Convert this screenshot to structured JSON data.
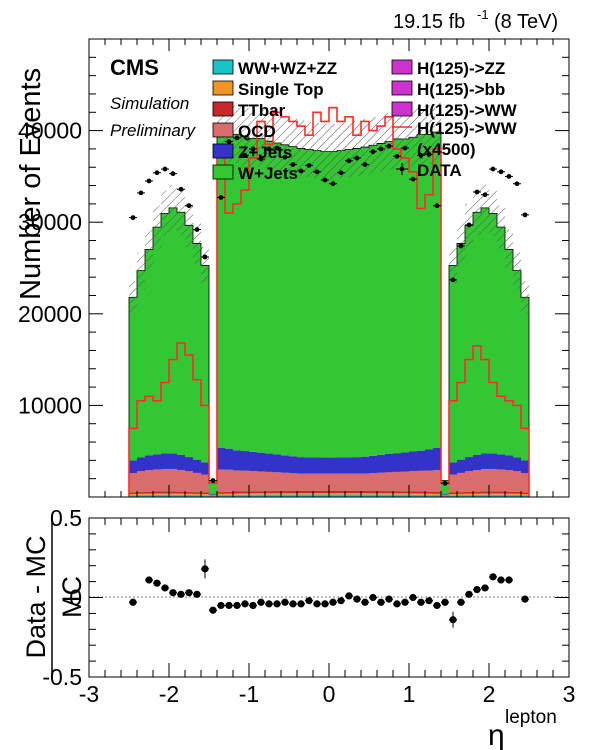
{
  "header": {
    "lumi_value": "19.15 fb",
    "lumi_exp": "-1",
    "energy": "(8 TeV)"
  },
  "labels": {
    "cms": "CMS",
    "simulation": "Simulation",
    "preliminary": "Preliminary"
  },
  "chart_data": [
    {
      "type": "bar",
      "subtype": "stacked-histogram",
      "ylabel": "Number of Events",
      "xlim": [
        -3,
        3
      ],
      "ylim": [
        0,
        50000
      ],
      "bin_edges": [
        -2.5,
        -2.4,
        -2.3,
        -2.2,
        -2.1,
        -2.0,
        -1.9,
        -1.8,
        -1.7,
        -1.6,
        -1.5,
        -1.4,
        -1.3,
        -1.2,
        -1.1,
        -1.0,
        -0.9,
        -0.8,
        -0.7,
        -0.6,
        -0.5,
        -0.4,
        -0.3,
        -0.2,
        -0.1,
        0.0,
        0.1,
        0.2,
        0.3,
        0.4,
        0.5,
        0.6,
        0.7,
        0.8,
        0.9,
        1.0,
        1.1,
        1.2,
        1.3,
        1.4,
        1.5,
        1.6,
        1.7,
        1.8,
        1.9,
        2.0,
        2.1,
        2.2,
        2.3,
        2.4,
        2.5
      ],
      "x_ticks": [
        -3,
        -2,
        -1,
        0,
        1,
        2,
        3
      ],
      "y_ticks": [
        {
          "value": 10000,
          "label": "10000"
        },
        {
          "value": 20000,
          "label": "20000"
        },
        {
          "value": 30000,
          "label": "30000"
        },
        {
          "value": 40000,
          "label": "40000"
        }
      ],
      "series": [
        {
          "name": "WW+WZ+ZZ",
          "color": "#19c4c8",
          "values": [
            210,
            230,
            240,
            250,
            250,
            250,
            240,
            230,
            215,
            200,
            20,
            220,
            235,
            245,
            250,
            255,
            258,
            260,
            262,
            263,
            264,
            265,
            265,
            265,
            265,
            265,
            265,
            265,
            265,
            264,
            263,
            262,
            260,
            258,
            255,
            250,
            245,
            235,
            220,
            20,
            200,
            215,
            230,
            240,
            250,
            250,
            250,
            240,
            230,
            210
          ]
        },
        {
          "name": "Single Top",
          "color": "#f09524",
          "values": [
            120,
            130,
            135,
            140,
            140,
            140,
            135,
            130,
            125,
            115,
            15,
            125,
            135,
            140,
            145,
            148,
            150,
            150,
            152,
            152,
            152,
            153,
            153,
            153,
            153,
            153,
            153,
            153,
            153,
            152,
            152,
            152,
            150,
            150,
            148,
            145,
            140,
            135,
            125,
            15,
            115,
            125,
            130,
            135,
            140,
            140,
            140,
            135,
            130,
            120
          ]
        },
        {
          "name": "TTbar",
          "color": "#c8282a",
          "values": [
            180,
            200,
            210,
            220,
            220,
            220,
            210,
            200,
            190,
            175,
            20,
            190,
            205,
            215,
            222,
            228,
            230,
            232,
            234,
            235,
            236,
            236,
            236,
            236,
            236,
            236,
            236,
            236,
            236,
            236,
            236,
            235,
            234,
            232,
            230,
            228,
            222,
            215,
            205,
            20,
            175,
            190,
            200,
            210,
            220,
            220,
            220,
            210,
            200,
            180
          ]
        },
        {
          "name": "QCD",
          "color": "#d96d6d",
          "values": [
            2100,
            2250,
            2350,
            2400,
            2450,
            2450,
            2350,
            2250,
            2100,
            1950,
            150,
            2450,
            2400,
            2300,
            2250,
            2200,
            2150,
            2100,
            2050,
            2000,
            1950,
            1900,
            1900,
            1900,
            1900,
            1900,
            1900,
            1900,
            1900,
            1900,
            1950,
            2000,
            2050,
            2100,
            2150,
            2200,
            2250,
            2300,
            2400,
            150,
            1950,
            2100,
            2250,
            2350,
            2450,
            2450,
            2400,
            2350,
            2250,
            2100
          ]
        },
        {
          "name": "Z+Jets",
          "color": "#3333c9",
          "values": [
            1400,
            1500,
            1600,
            1650,
            1700,
            1700,
            1650,
            1550,
            1450,
            1350,
            100,
            2400,
            2300,
            2200,
            2150,
            2100,
            2050,
            2000,
            1950,
            1900,
            1850,
            1800,
            1780,
            1760,
            1750,
            1750,
            1760,
            1780,
            1800,
            1850,
            1900,
            1950,
            2000,
            2050,
            2100,
            2150,
            2200,
            2300,
            2400,
            100,
            1350,
            1450,
            1550,
            1650,
            1700,
            1700,
            1650,
            1600,
            1500,
            1400
          ]
        },
        {
          "name": "W+Jets",
          "color": "#33c833",
          "values": [
            17800,
            20400,
            22500,
            24800,
            26200,
            26800,
            26500,
            25300,
            23600,
            21500,
            1500,
            34500,
            34400,
            34500,
            34300,
            34200,
            34300,
            34100,
            34000,
            33900,
            33800,
            33700,
            33600,
            33500,
            33400,
            33400,
            33500,
            33600,
            33700,
            33800,
            33900,
            34000,
            34100,
            34300,
            34200,
            34300,
            34500,
            34400,
            34500,
            1500,
            21500,
            23600,
            25300,
            26500,
            26800,
            26200,
            24800,
            22500,
            20400,
            17800
          ]
        },
        {
          "name": "H(125)->ZZ",
          "color": "#cc33cc",
          "values": []
        },
        {
          "name": "H(125)->bb",
          "color": "#cc33cc",
          "values": []
        },
        {
          "name": "H(125)->WW",
          "color": "#cc33cc",
          "values": []
        },
        {
          "name": "H(125)->WW (x4500)",
          "legend_lines": [
            "H(125)->WW",
            "(x4500)"
          ],
          "color": "#ff2a2a",
          "style": "line",
          "values": [
            7500,
            10500,
            11000,
            10500,
            12500,
            15000,
            16800,
            15500,
            12800,
            10000,
            1500,
            38000,
            31000,
            32000,
            33500,
            37000,
            41000,
            38500,
            42000,
            41500,
            41000,
            40500,
            39500,
            42000,
            41000,
            42500,
            41000,
            41500,
            39500,
            41000,
            40000,
            40500,
            41500,
            38000,
            37000,
            35500,
            31500,
            33000,
            38000,
            1500,
            10500,
            12500,
            15000,
            16500,
            15000,
            12500,
            11000,
            10500,
            10000,
            7500
          ]
        },
        {
          "name": "DATA",
          "color": "#000000",
          "style": "points",
          "values": [
            30500,
            33200,
            34500,
            35400,
            35800,
            35300,
            33600,
            31800,
            29200,
            26200,
            1800,
            32700,
            38800,
            39200,
            37300,
            38000,
            36900,
            38000,
            38100,
            37100,
            36300,
            35600,
            36200,
            35500,
            34600,
            34200,
            35400,
            36700,
            37000,
            36300,
            37700,
            38000,
            38300,
            37200,
            38100,
            34700,
            37300,
            37400,
            31800,
            1500,
            23700,
            27400,
            29700,
            33300,
            33000,
            35800,
            35500,
            35000,
            34200,
            30800
          ]
        }
      ]
    },
    {
      "type": "scatter",
      "subtype": "ratio-with-errors",
      "xlabel_base": "η",
      "xlabel_sup": "lepton",
      "ylabel_numerator": "Data - MC",
      "ylabel_denominator": "MC",
      "xlim": [
        -3,
        3
      ],
      "ylim": [
        -0.5,
        0.5
      ],
      "x_ticks": [
        {
          "value": -3,
          "label": "-3"
        },
        {
          "value": -2,
          "label": "-2"
        },
        {
          "value": -1,
          "label": "-1"
        },
        {
          "value": 0,
          "label": "0"
        },
        {
          "value": 1,
          "label": "1"
        },
        {
          "value": 2,
          "label": "2"
        },
        {
          "value": 3,
          "label": "3"
        }
      ],
      "y_ticks": [
        {
          "value": -0.5,
          "label": "-0.5"
        },
        {
          "value": 0,
          "label": "0"
        },
        {
          "value": 0.5,
          "label": "0.5"
        }
      ],
      "points": [
        {
          "x": -2.45,
          "y": -0.03,
          "err": 0.01
        },
        {
          "x": -2.25,
          "y": 0.11,
          "err": 0.01
        },
        {
          "x": -2.15,
          "y": 0.09,
          "err": 0.01
        },
        {
          "x": -2.05,
          "y": 0.06,
          "err": 0.01
        },
        {
          "x": -1.95,
          "y": 0.03,
          "err": 0.01
        },
        {
          "x": -1.85,
          "y": 0.02,
          "err": 0.01
        },
        {
          "x": -1.75,
          "y": 0.03,
          "err": 0.01
        },
        {
          "x": -1.65,
          "y": 0.02,
          "err": 0.01
        },
        {
          "x": -1.55,
          "y": 0.18,
          "err": 0.06
        },
        {
          "x": -1.45,
          "y": -0.08,
          "err": 0.01
        },
        {
          "x": -1.35,
          "y": -0.05,
          "err": 0.01
        },
        {
          "x": -1.25,
          "y": -0.05,
          "err": 0.01
        },
        {
          "x": -1.15,
          "y": -0.05,
          "err": 0.01
        },
        {
          "x": -1.05,
          "y": -0.04,
          "err": 0.01
        },
        {
          "x": -0.95,
          "y": -0.05,
          "err": 0.01
        },
        {
          "x": -0.85,
          "y": -0.03,
          "err": 0.01
        },
        {
          "x": -0.75,
          "y": -0.04,
          "err": 0.01
        },
        {
          "x": -0.65,
          "y": -0.04,
          "err": 0.01
        },
        {
          "x": -0.55,
          "y": -0.03,
          "err": 0.01
        },
        {
          "x": -0.45,
          "y": -0.04,
          "err": 0.01
        },
        {
          "x": -0.35,
          "y": -0.04,
          "err": 0.01
        },
        {
          "x": -0.25,
          "y": -0.02,
          "err": 0.01
        },
        {
          "x": -0.15,
          "y": -0.04,
          "err": 0.01
        },
        {
          "x": -0.05,
          "y": -0.04,
          "err": 0.01
        },
        {
          "x": 0.05,
          "y": -0.03,
          "err": 0.01
        },
        {
          "x": 0.15,
          "y": -0.02,
          "err": 0.01
        },
        {
          "x": 0.25,
          "y": 0.01,
          "err": 0.01
        },
        {
          "x": 0.35,
          "y": -0.01,
          "err": 0.01
        },
        {
          "x": 0.45,
          "y": -0.03,
          "err": 0.01
        },
        {
          "x": 0.55,
          "y": 0.0,
          "err": 0.01
        },
        {
          "x": 0.65,
          "y": -0.03,
          "err": 0.01
        },
        {
          "x": 0.75,
          "y": -0.01,
          "err": 0.01
        },
        {
          "x": 0.85,
          "y": -0.04,
          "err": 0.01
        },
        {
          "x": 0.95,
          "y": -0.03,
          "err": 0.01
        },
        {
          "x": 1.05,
          "y": 0.0,
          "err": 0.01
        },
        {
          "x": 1.15,
          "y": -0.03,
          "err": 0.01
        },
        {
          "x": 1.25,
          "y": -0.02,
          "err": 0.01
        },
        {
          "x": 1.35,
          "y": -0.05,
          "err": 0.01
        },
        {
          "x": 1.45,
          "y": -0.03,
          "err": 0.01
        },
        {
          "x": 1.55,
          "y": -0.14,
          "err": 0.05
        },
        {
          "x": 1.65,
          "y": -0.03,
          "err": 0.01
        },
        {
          "x": 1.75,
          "y": 0.02,
          "err": 0.01
        },
        {
          "x": 1.85,
          "y": 0.05,
          "err": 0.01
        },
        {
          "x": 1.95,
          "y": 0.06,
          "err": 0.01
        },
        {
          "x": 2.05,
          "y": 0.13,
          "err": 0.01
        },
        {
          "x": 2.15,
          "y": 0.11,
          "err": 0.01
        },
        {
          "x": 2.25,
          "y": 0.11,
          "err": 0.01
        },
        {
          "x": 2.45,
          "y": -0.01,
          "err": 0.01
        }
      ]
    }
  ]
}
